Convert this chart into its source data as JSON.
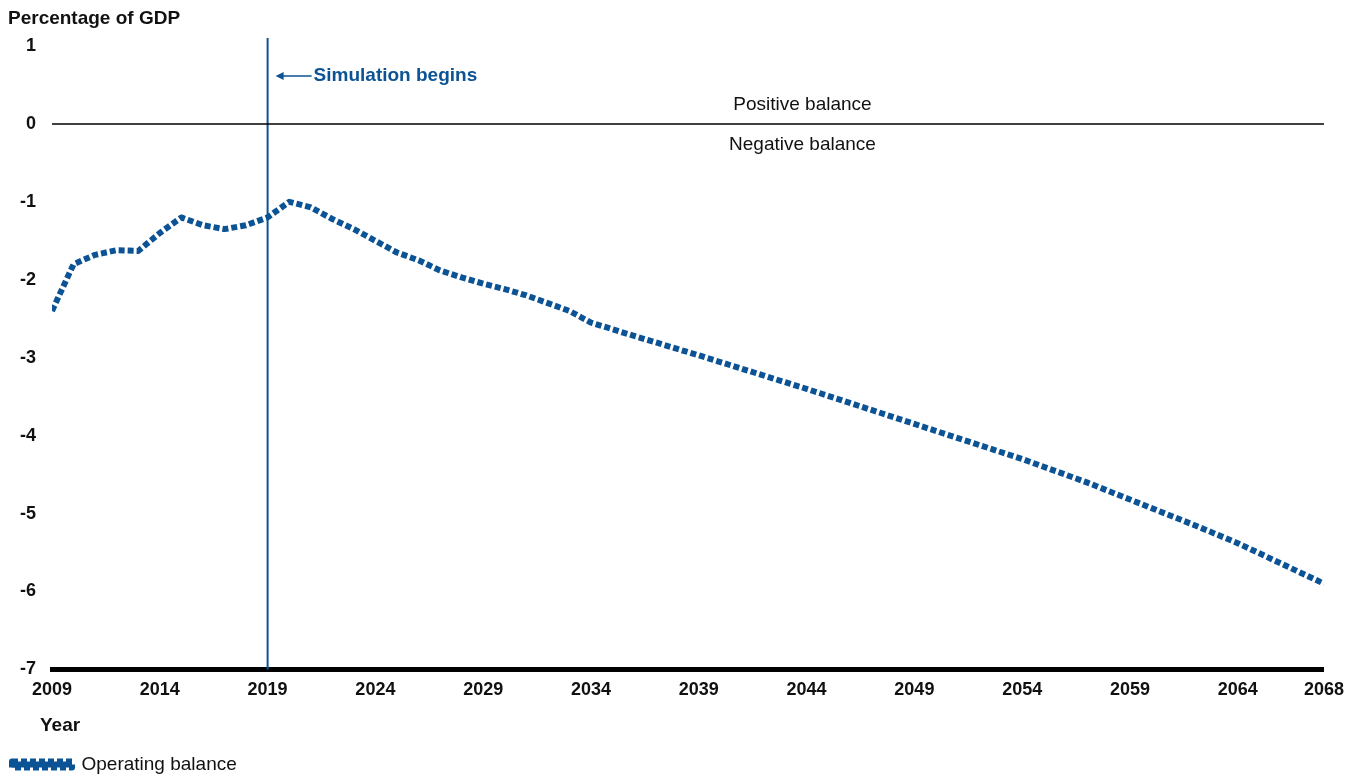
{
  "chart_data": {
    "type": "line",
    "xlabel": "Year",
    "ylabel": "Percentage of GDP",
    "x": [
      2009,
      2010,
      2011,
      2012,
      2013,
      2014,
      2015,
      2016,
      2017,
      2018,
      2019,
      2020,
      2021,
      2022,
      2023,
      2024,
      2025,
      2026,
      2027,
      2028,
      2029,
      2030,
      2031,
      2032,
      2033,
      2034,
      2036,
      2039,
      2044,
      2049,
      2054,
      2057,
      2059,
      2062,
      2064,
      2068
    ],
    "series": [
      {
        "name": "Operating balance",
        "color": "#0b5394",
        "values": [
          -2.4,
          -1.8,
          -1.68,
          -1.62,
          -1.63,
          -1.4,
          -1.2,
          -1.3,
          -1.35,
          -1.3,
          -1.2,
          -1.0,
          -1.07,
          -1.22,
          -1.35,
          -1.5,
          -1.65,
          -1.75,
          -1.88,
          -1.97,
          -2.05,
          -2.12,
          -2.2,
          -2.3,
          -2.4,
          -2.55,
          -2.72,
          -2.97,
          -3.4,
          -3.85,
          -4.3,
          -4.6,
          -4.82,
          -5.15,
          -5.38,
          -5.9
        ]
      }
    ],
    "xlim": [
      2009,
      2068
    ],
    "xticks": [
      2009,
      2014,
      2019,
      2024,
      2029,
      2034,
      2039,
      2044,
      2049,
      2054,
      2059,
      2064,
      2068
    ],
    "ylim": [
      -7,
      1
    ],
    "yticks": [
      -7,
      -6,
      -5,
      -4,
      -3,
      -2,
      -1,
      0,
      1
    ],
    "ref_lines": [
      {
        "axis": "x",
        "value": 2019,
        "label": "Simulation begins",
        "color": "#0b5394"
      },
      {
        "axis": "y",
        "value": 0,
        "color": "#000000"
      }
    ],
    "annotations": [
      "Positive balance",
      "Negative balance"
    ],
    "grid": false,
    "legend": "bottom left",
    "marker": "none",
    "line_style": "dashed"
  }
}
